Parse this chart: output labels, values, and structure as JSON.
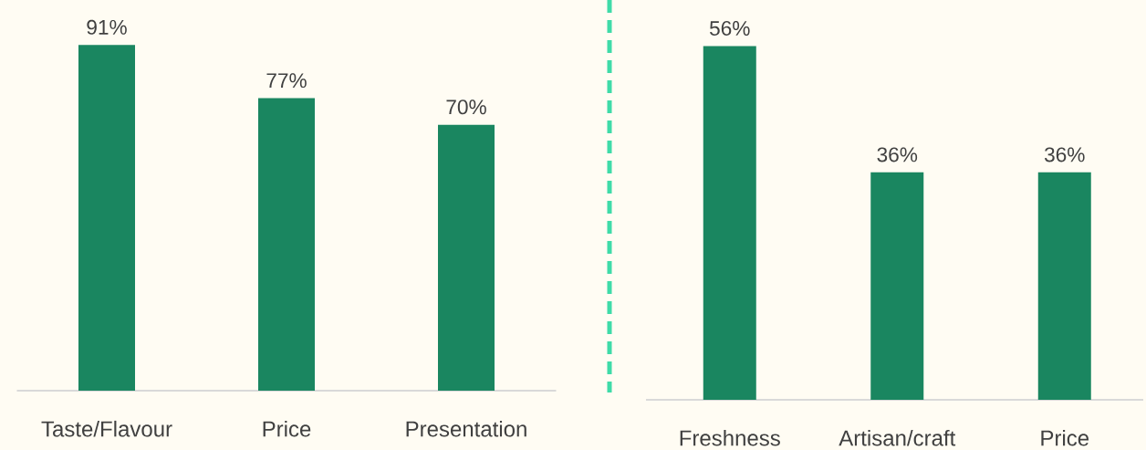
{
  "chart_data": [
    {
      "type": "bar",
      "categories": [
        "Taste/Flavour",
        "Price",
        "Presentation"
      ],
      "values": [
        91,
        77,
        70
      ],
      "color": "#1a8660",
      "value_labels": [
        "91%",
        "77%",
        "70%"
      ]
    },
    {
      "type": "bar",
      "categories": [
        "Freshness",
        "Artisan/craft",
        "Price"
      ],
      "values": [
        56,
        36,
        36
      ],
      "color": "#1a8660",
      "value_labels": [
        "56%",
        "36%",
        "36%"
      ]
    }
  ]
}
